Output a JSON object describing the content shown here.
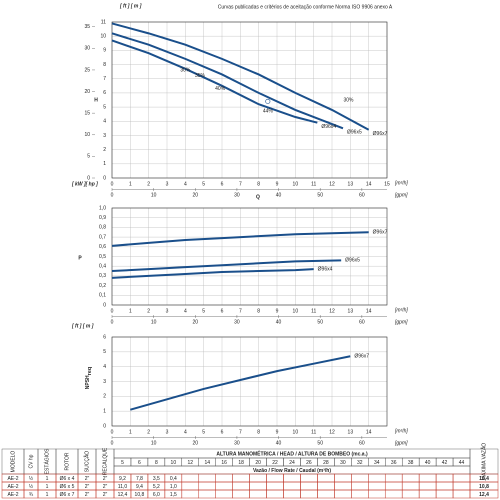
{
  "chart_data": [
    {
      "type": "line",
      "title": "Curvas publicadas e critérios de aceitação conforme Norma ISO 9906 anexo A",
      "ylabel": "H",
      "y_units": "[ ft ] [ m ]",
      "x_unit": "[m³/h]",
      "x2_unit": "[gpm]",
      "xlim": [
        0,
        15
      ],
      "xticks": [
        0,
        1,
        2,
        3,
        4,
        5,
        6,
        7,
        8,
        9,
        10,
        11,
        12,
        13,
        14,
        15
      ],
      "x2lim": [
        0,
        66.04
      ],
      "x2ticks": [
        0,
        10,
        20,
        30,
        40,
        50,
        60
      ],
      "ylim": [
        0,
        11
      ],
      "yticks": [
        0,
        1,
        2,
        3,
        4,
        5,
        6,
        7,
        8,
        9,
        10,
        11
      ],
      "y2lim": [
        0,
        36.09
      ],
      "y2ticks": [
        0,
        5,
        10,
        15,
        20,
        25,
        30,
        35
      ],
      "grid": true,
      "series": [
        {
          "name": "Ø96x7",
          "color": "#1a4f8b",
          "x": [
            0,
            2,
            4,
            6,
            8,
            10,
            12,
            14
          ],
          "values": [
            10.9,
            10.2,
            9.4,
            8.4,
            7.3,
            6.0,
            4.8,
            3.4
          ]
        },
        {
          "name": "Ø96x5",
          "color": "#1a4f8b",
          "x": [
            0,
            2,
            4,
            6,
            8,
            10,
            12,
            12.6
          ],
          "values": [
            10.2,
            9.4,
            8.4,
            7.3,
            6.0,
            4.8,
            3.8,
            3.5
          ]
        },
        {
          "name": "Ø96x4",
          "color": "#1a4f8b",
          "x": [
            0,
            2,
            4,
            6,
            8,
            10,
            11.2
          ],
          "values": [
            9.7,
            8.8,
            7.7,
            6.5,
            5.2,
            4.3,
            3.9
          ]
        }
      ],
      "annotations": [
        {
          "text": "30%",
          "x": 4.0,
          "y": 7.6
        },
        {
          "text": "35%",
          "x": 4.8,
          "y": 7.2
        },
        {
          "text": "40%",
          "x": 5.9,
          "y": 6.3
        },
        {
          "text": "44%",
          "x": 8.5,
          "y": 4.7
        },
        {
          "text": "30%",
          "x": 12.9,
          "y": 5.5
        }
      ],
      "marker": {
        "x": 8.5,
        "y": 5.4
      }
    },
    {
      "type": "line",
      "xlabel": "Q",
      "ylabel": "P",
      "y_units": "[ kW ][ hp ]",
      "x_unit": "[m³/h]",
      "x2_unit": "[gpm]",
      "xlim": [
        0,
        15
      ],
      "xticks": [
        0,
        1,
        2,
        3,
        4,
        5,
        6,
        7,
        8,
        9,
        10,
        11,
        12,
        13,
        14
      ],
      "x2lim": [
        0,
        66.04
      ],
      "x2ticks": [
        0,
        10,
        20,
        30,
        40,
        50,
        60
      ],
      "ylim": [
        0,
        1.0
      ],
      "yticks": [
        0,
        {
          "value": 0.1,
          "label": "0,1"
        },
        {
          "value": 0.2,
          "label": "0,2"
        },
        {
          "value": 0.3,
          "label": "0,3"
        },
        {
          "value": 0.4,
          "label": "0,4"
        },
        {
          "value": 0.5,
          "label": "0,5"
        },
        {
          "value": 0.6,
          "label": "0,6"
        },
        {
          "value": 0.7,
          "label": "0,7"
        },
        {
          "value": 0.8,
          "label": "0,8"
        },
        {
          "value": 0.9,
          "label": "0,9"
        },
        {
          "value": 1.0,
          "label": "1,0"
        }
      ],
      "grid": true,
      "series": [
        {
          "name": "Ø96x7",
          "color": "#1a4f8b",
          "x": [
            0,
            2,
            4,
            6,
            8,
            10,
            12,
            14
          ],
          "values": [
            0.61,
            0.64,
            0.67,
            0.69,
            0.71,
            0.73,
            0.74,
            0.75
          ]
        },
        {
          "name": "Ø96x5",
          "color": "#1a4f8b",
          "x": [
            0,
            2,
            4,
            6,
            8,
            10,
            12.5
          ],
          "values": [
            0.35,
            0.37,
            0.39,
            0.41,
            0.43,
            0.45,
            0.46
          ]
        },
        {
          "name": "Ø96x4",
          "color": "#1a4f8b",
          "x": [
            0,
            2,
            4,
            6,
            8,
            10,
            11
          ],
          "values": [
            0.28,
            0.3,
            0.32,
            0.34,
            0.35,
            0.36,
            0.37
          ]
        }
      ]
    },
    {
      "type": "line",
      "ylabel": "NPSH",
      "ylabel_sub": "req",
      "y_units": "[ ft ] [ m ]",
      "x_unit": "[m³/h]",
      "x2_unit": "[gpm]",
      "xlim": [
        0,
        15
      ],
      "xticks": [
        0,
        1,
        2,
        3,
        4,
        5,
        6,
        7,
        8,
        9,
        10,
        11,
        12,
        13,
        14
      ],
      "x2lim": [
        0,
        66.04
      ],
      "x2ticks": [
        0,
        10,
        20,
        30,
        40,
        50,
        60
      ],
      "ylim": [
        0,
        6
      ],
      "yticks": [
        0,
        1,
        2,
        3,
        4,
        5,
        6
      ],
      "grid": true,
      "series": [
        {
          "name": "Ø96x7",
          "color": "#1a4f8b",
          "x": [
            1,
            3,
            5,
            7,
            9,
            11,
            13
          ],
          "values": [
            1.1,
            1.8,
            2.5,
            3.1,
            3.7,
            4.2,
            4.7
          ]
        }
      ]
    }
  ],
  "table": {
    "headers": [
      "MODELO",
      "CV hp",
      "ESTÁGIOS",
      "ROTOR",
      "SUCÇÃO",
      "RECALQUE"
    ],
    "head_title": "ALTURA MANOMÉTRICA / HEAD / ALTURA DE BOMBEO (mc.a.)",
    "heads": [
      "5",
      "6",
      "8",
      "10",
      "12",
      "14",
      "16",
      "18",
      "20",
      "22",
      "24",
      "26",
      "28",
      "30",
      "32",
      "34",
      "36",
      "38",
      "40",
      "42",
      "44"
    ],
    "flow_title": "Vazão / Flow Rate / Caudal  (m³/h)",
    "max_title": "MÁXIMA VAZÃO",
    "rows": [
      {
        "cells": [
          "AE-2",
          "½",
          "1",
          "Ø6 x 4",
          "2\"",
          "2\""
        ],
        "flows": [
          "9,2",
          "7,8",
          "3,5",
          "0,4"
        ],
        "max": "10,4"
      },
      {
        "cells": [
          "AE-2",
          "½",
          "1",
          "Ø6 x 5",
          "2\"",
          "2\""
        ],
        "flows": [
          "11,0",
          "9,4",
          "5,2",
          "1,0"
        ],
        "max": "10,8"
      },
      {
        "cells": [
          "AE-2",
          "¾",
          "1",
          "Ø6 x 7",
          "2\"",
          "2\""
        ],
        "flows": [
          "12,4",
          "10,8",
          "6,0",
          "1,5"
        ],
        "max": "12,4"
      }
    ]
  }
}
